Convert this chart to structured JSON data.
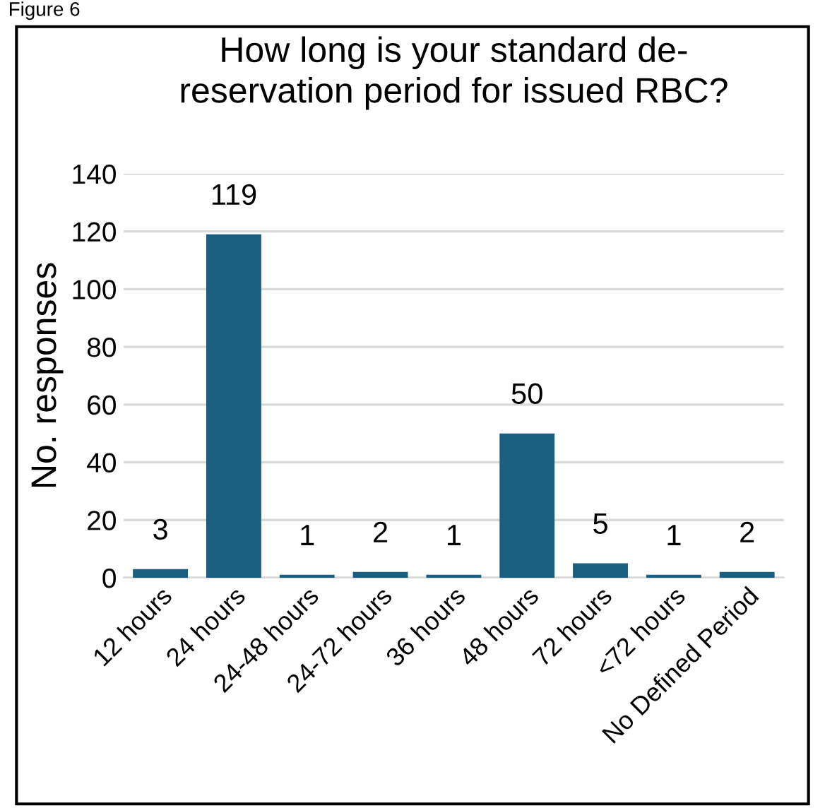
{
  "chart_data": {
    "type": "bar",
    "title": "How long is your standard de-\nreservation period for issued RBC?",
    "ylabel": "No. responses",
    "categories": [
      "12 hours",
      "24 hours",
      "24-48 hours",
      "24-72 hours",
      "36 hours",
      "48 hours",
      "72 hours",
      "<72 hours",
      "No Defined Period"
    ],
    "values": [
      3,
      119,
      1,
      2,
      1,
      50,
      5,
      1,
      2
    ],
    "color": "#1a5e80",
    "ylim": [
      0,
      140
    ],
    "yticks": [
      0,
      20,
      40,
      60,
      80,
      100,
      120,
      140
    ],
    "grid": "y",
    "data_labels": true,
    "annotations": [
      "Figure 6"
    ]
  }
}
